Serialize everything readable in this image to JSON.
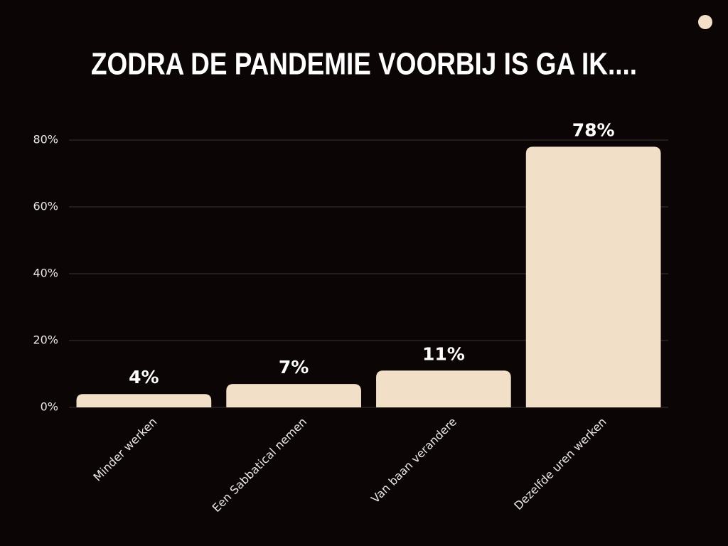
{
  "chart_data": {
    "type": "bar",
    "title": "ZODRA DE PANDEMIE VOORBIJ IS GA IK....",
    "categories": [
      "Minder werken",
      "Een Sabbatical nemen",
      "Van baan verandere",
      "Dezelfde uren werken"
    ],
    "values": [
      4,
      7,
      11,
      78
    ],
    "value_labels": [
      "4%",
      "7%",
      "11%",
      "78%"
    ],
    "color": "#f2dfc8",
    "ylim": [
      0,
      80
    ],
    "yticks": [
      {
        "value": 0,
        "label": "0%"
      },
      {
        "value": 20,
        "label": "20%"
      },
      {
        "value": 40,
        "label": "40%"
      },
      {
        "value": 60,
        "label": "60%"
      },
      {
        "value": 80,
        "label": "80%"
      }
    ],
    "grid": true
  }
}
